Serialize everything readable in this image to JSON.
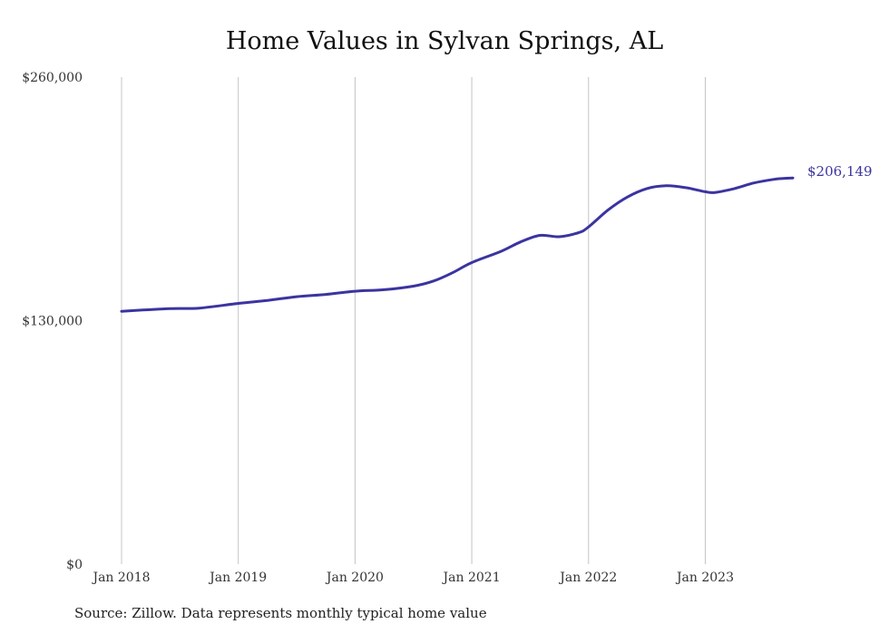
{
  "chart_data": {
    "type": "line",
    "title": "Home Values in Sylvan Springs, AL",
    "xlabel": "",
    "ylabel": "",
    "ylim": [
      0,
      260000
    ],
    "yticks": [
      {
        "value": 0,
        "label": "$0"
      },
      {
        "value": 130000,
        "label": "$130,000"
      },
      {
        "value": 260000,
        "label": "$260,000"
      }
    ],
    "xlim": [
      "2018-01",
      "2023-10"
    ],
    "xticks": [
      {
        "date": "2018-01",
        "label": "Jan 2018"
      },
      {
        "date": "2019-01",
        "label": "Jan 2019"
      },
      {
        "date": "2020-01",
        "label": "Jan 2020"
      },
      {
        "date": "2021-01",
        "label": "Jan 2021"
      },
      {
        "date": "2022-01",
        "label": "Jan 2022"
      },
      {
        "date": "2023-01",
        "label": "Jan 2023"
      }
    ],
    "grid": "vertical",
    "series": [
      {
        "color": "#3b34a0",
        "end_label": "$206,149",
        "points": [
          [
            "2018-01",
            135000
          ],
          [
            "2018-03",
            135600
          ],
          [
            "2018-06",
            136400
          ],
          [
            "2018-09",
            136700
          ],
          [
            "2019-01",
            139200
          ],
          [
            "2019-04",
            140800
          ],
          [
            "2019-07",
            142800
          ],
          [
            "2019-10",
            144000
          ],
          [
            "2020-01",
            145700
          ],
          [
            "2020-04",
            146500
          ],
          [
            "2020-07",
            148400
          ],
          [
            "2020-09",
            151000
          ],
          [
            "2020-11",
            155500
          ],
          [
            "2021-01",
            161000
          ],
          [
            "2021-04",
            167000
          ],
          [
            "2021-06",
            172000
          ],
          [
            "2021-08",
            175500
          ],
          [
            "2021-10",
            174800
          ],
          [
            "2021-12",
            177000
          ],
          [
            "2022-01",
            180000
          ],
          [
            "2022-03",
            189000
          ],
          [
            "2022-05",
            196000
          ],
          [
            "2022-07",
            200500
          ],
          [
            "2022-09",
            202000
          ],
          [
            "2022-11",
            201000
          ],
          [
            "2023-01",
            198800
          ],
          [
            "2023-02",
            198400
          ],
          [
            "2023-04",
            200500
          ],
          [
            "2023-06",
            203500
          ],
          [
            "2023-08",
            205400
          ],
          [
            "2023-09",
            205900
          ],
          [
            "2023-10",
            206149
          ]
        ]
      }
    ]
  },
  "footer": {
    "source": "Source: Zillow. Data represents monthly typical home value"
  }
}
